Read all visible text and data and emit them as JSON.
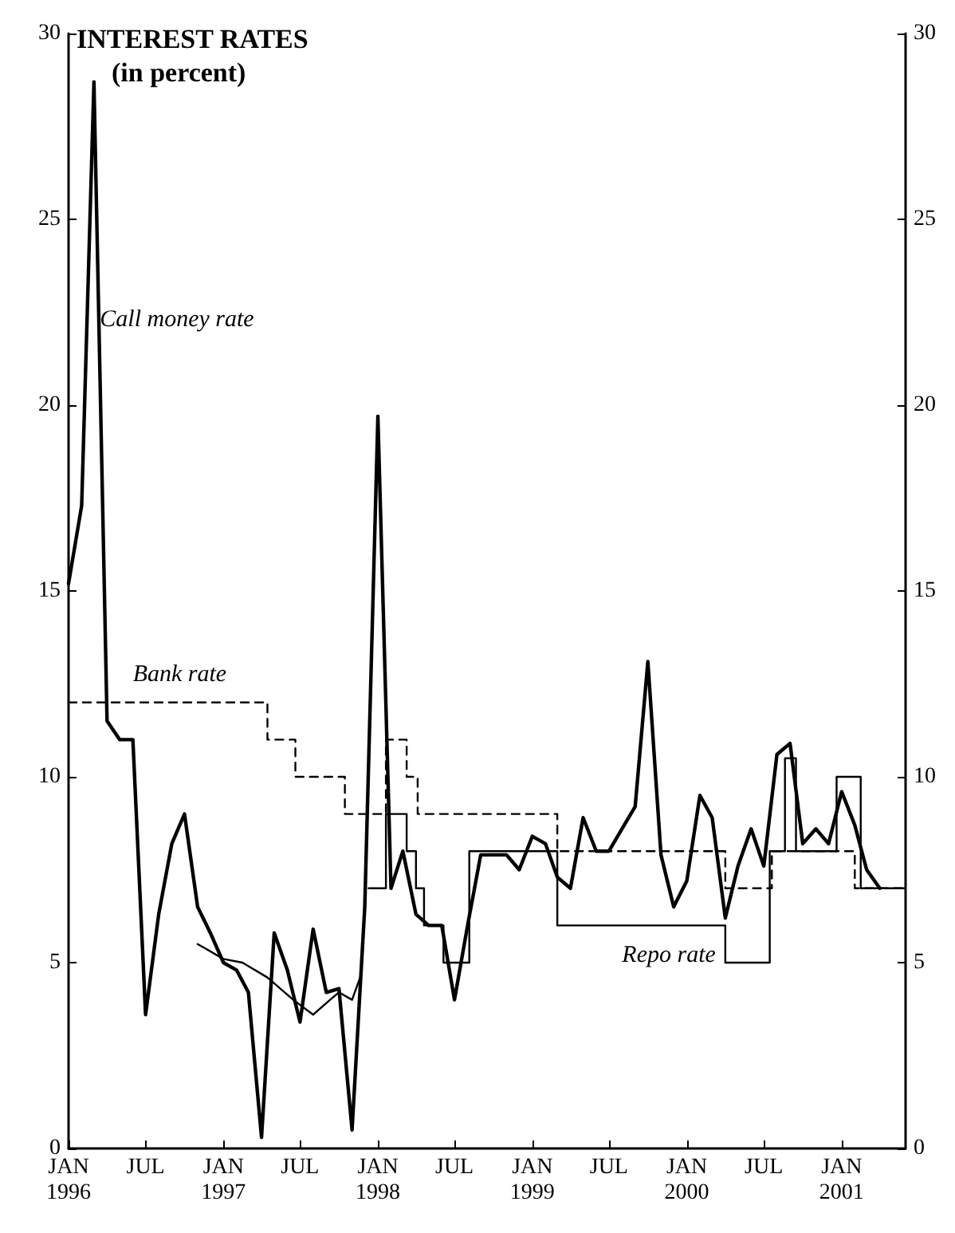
{
  "chart_data": {
    "type": "line",
    "title": "INTEREST RATES",
    "subtitle": "(in percent)",
    "xlim": [
      "1996-01",
      "2001-06"
    ],
    "xticks": [
      {
        "value": "1996-01",
        "label": "JAN\n1996"
      },
      {
        "value": "1996-07",
        "label": "JUL"
      },
      {
        "value": "1997-01",
        "label": "JAN\n1997"
      },
      {
        "value": "1997-07",
        "label": "JUL"
      },
      {
        "value": "1998-01",
        "label": "JAN\n1998"
      },
      {
        "value": "1998-07",
        "label": "JUL"
      },
      {
        "value": "1999-01",
        "label": "JAN\n1999"
      },
      {
        "value": "1999-07",
        "label": "JUL"
      },
      {
        "value": "2000-01",
        "label": "JAN\n2000"
      },
      {
        "value": "2000-07",
        "label": "JUL"
      },
      {
        "value": "2001-01",
        "label": "JAN\n2001"
      }
    ],
    "ylim": [
      0,
      30
    ],
    "yticks": [
      0,
      5,
      10,
      15,
      20,
      25,
      30
    ],
    "y2lim": [
      0,
      30
    ],
    "y2ticks": [
      0,
      5,
      10,
      15,
      20,
      25,
      30
    ],
    "grid": false,
    "legend": false,
    "marker": "none",
    "series": [
      {
        "name": "Call money rate",
        "color": "#000000",
        "line_style": "solid",
        "x": [
          "1996-01",
          "1996-02",
          "1996-03",
          "1996-04",
          "1996-05",
          "1996-06",
          "1996-07",
          "1996-08",
          "1996-09",
          "1996-10",
          "1996-11",
          "1996-12",
          "1997-01",
          "1997-02",
          "1997-03",
          "1997-04",
          "1997-05",
          "1997-06",
          "1997-07",
          "1997-08",
          "1997-09",
          "1997-10",
          "1997-11",
          "1997-12",
          "1998-01",
          "1998-02",
          "1998-03",
          "1998-04",
          "1998-05",
          "1998-06",
          "1998-07",
          "1998-08",
          "1998-09",
          "1998-10",
          "1998-11",
          "1998-12",
          "1999-01",
          "1999-02",
          "1999-03",
          "1999-04",
          "1999-05",
          "1999-06",
          "1999-07",
          "1999-08",
          "1999-09",
          "1999-10",
          "1999-11",
          "1999-12",
          "2000-01",
          "2000-02",
          "2000-03",
          "2000-04",
          "2000-05",
          "2000-06",
          "2000-07",
          "2000-08",
          "2000-09",
          "2000-10",
          "2000-11",
          "2000-12",
          "2001-01",
          "2001-02",
          "2001-03",
          "2001-04"
        ],
        "values": [
          15.2,
          17.3,
          28.7,
          11.5,
          11,
          11,
          3.6,
          6.3,
          8.2,
          9.0,
          6.5,
          5.8,
          5.0,
          4.8,
          4.2,
          0.3,
          5.8,
          4.8,
          3.4,
          5.9,
          4.2,
          4.3,
          0.5,
          6.5,
          19.7,
          7.0,
          8.0,
          6.3,
          6.0,
          6.0,
          4.0,
          6.0,
          7.9,
          7.9,
          7.9,
          7.5,
          8.4,
          8.2,
          7.3,
          7.0,
          8.9,
          8.0,
          8.0,
          8.6,
          9.2,
          13.1,
          7.9,
          6.5,
          7.2,
          9.5,
          8.9,
          6.2,
          7.6,
          8.6,
          7.6,
          10.6,
          10.9,
          8.2,
          8.6,
          8.2,
          9.6,
          8.7,
          7.5,
          7.0
        ]
      },
      {
        "name": "Bank rate",
        "type": "step",
        "color": "#000000",
        "line_style": "dashed",
        "x": [
          "1996-01",
          "1997-04-15",
          "1997-06-20",
          "1997-10-15",
          "1998-01-20",
          "1998-03-10",
          "1998-04-05",
          "1999-03",
          "2000-04",
          "2000-07-20",
          "2001-02",
          "2001-06"
        ],
        "values": [
          12,
          11,
          10,
          9,
          11,
          10,
          9,
          8,
          7,
          8,
          7,
          7
        ]
      },
      {
        "name": "Repo rate",
        "type": "step",
        "color": "#000000",
        "line_style": "solid",
        "x": [
          "1997-12-10",
          "1998-01-20",
          "1998-03-10",
          "1998-04-01",
          "1998-04-20",
          "1998-06-05",
          "1998-08-05",
          "1999-03",
          "2000-04",
          "2000-07-15",
          "2000-08-20",
          "2000-09-15",
          "2000-12-20",
          "2001-02-15",
          "2001-06"
        ],
        "values": [
          7,
          9,
          8,
          7,
          6,
          5,
          8,
          6,
          5,
          8,
          10.5,
          8,
          10,
          7,
          7
        ]
      },
      {
        "color": "#000000",
        "line_style": "solid",
        "x": [
          "1996-11",
          "1997-01",
          "1997-02-15",
          "1997-04-15",
          "1997-06-15",
          "1997-08",
          "1997-09-10",
          "1997-10",
          "1997-11",
          "1997-11-20"
        ],
        "values": [
          5.5,
          5.1,
          5.0,
          4.6,
          4.0,
          3.6,
          4.0,
          4.2,
          4.0,
          4.6
        ]
      }
    ]
  }
}
